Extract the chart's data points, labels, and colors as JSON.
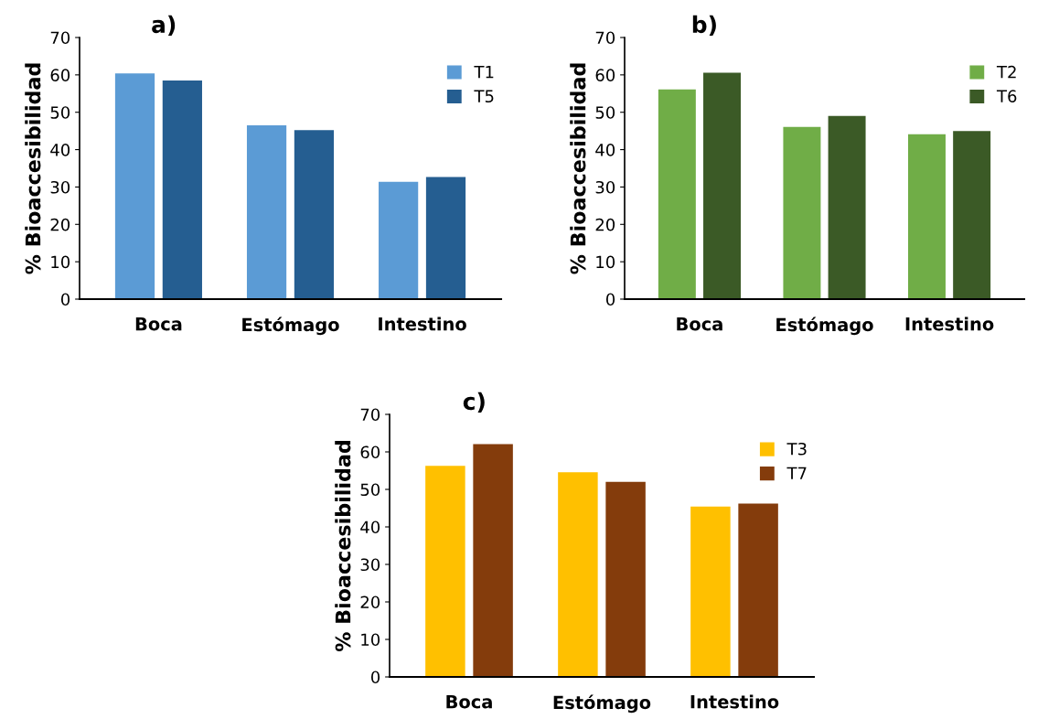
{
  "chart_data": [
    {
      "type": "bar",
      "title": "a)",
      "ylabel": "% Bioaccesibilidad",
      "categories": [
        "Boca",
        "Estómago",
        "Intestino"
      ],
      "series": [
        {
          "name": "T1",
          "color": "#5b9bd5",
          "values": [
            60.4,
            46.5,
            31.4
          ]
        },
        {
          "name": "T5",
          "color": "#255e91",
          "values": [
            58.5,
            45.2,
            32.7
          ]
        }
      ],
      "ylim": [
        0,
        70
      ],
      "yticks": [
        0,
        10,
        20,
        30,
        40,
        50,
        60,
        70
      ],
      "legend": "top right",
      "grid": false
    },
    {
      "type": "bar",
      "title": "b)",
      "ylabel": "% Bioaccesibilidad",
      "categories": [
        "Boca",
        "Estómago",
        "Intestino"
      ],
      "series": [
        {
          "name": "T2",
          "color": "#70ad47",
          "values": [
            56.1,
            46.1,
            44.1
          ]
        },
        {
          "name": "T6",
          "color": "#3b5a26",
          "values": [
            60.6,
            49.0,
            45.0
          ]
        }
      ],
      "ylim": [
        0,
        70
      ],
      "yticks": [
        0,
        10,
        20,
        30,
        40,
        50,
        60,
        70
      ],
      "legend": "top right",
      "grid": false
    },
    {
      "type": "bar",
      "title": "c)",
      "ylabel": "% Bioaccesibilidad",
      "categories": [
        "Boca",
        "Estómago",
        "Intestino"
      ],
      "series": [
        {
          "name": "T3",
          "color": "#ffc000",
          "values": [
            56.3,
            54.6,
            45.4
          ]
        },
        {
          "name": "T7",
          "color": "#843c0c",
          "values": [
            62.1,
            52.0,
            46.2
          ]
        }
      ],
      "ylim": [
        0,
        70
      ],
      "yticks": [
        0,
        10,
        20,
        30,
        40,
        50,
        60,
        70
      ],
      "legend": "top right",
      "grid": false
    }
  ]
}
